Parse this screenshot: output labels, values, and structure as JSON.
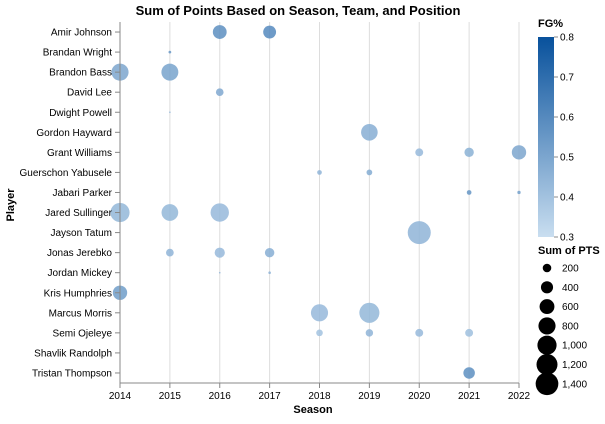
{
  "chart_data": {
    "type": "scatter",
    "title": "Sum of Points Based on Season, Team, and Position",
    "xlabel": "Season",
    "ylabel": "Player",
    "x_categories": [
      "2014",
      "2015",
      "2016",
      "2017",
      "2018",
      "2019",
      "2020",
      "2021",
      "2022"
    ],
    "y_categories": [
      "Amir Johnson",
      "Brandan Wright",
      "Brandon Bass",
      "David Lee",
      "Dwight Powell",
      "Gordon Hayward",
      "Grant Williams",
      "Guerschon Yabusele",
      "Jabari Parker",
      "Jared Sullinger",
      "Jayson Tatum",
      "Jonas Jerebko",
      "Jordan Mickey",
      "Kris Humphries",
      "Marcus Morris",
      "Semi Ojeleye",
      "Shavlik Randolph",
      "Tristan Thompson"
    ],
    "grid": true,
    "color_legend": {
      "title": "FG%",
      "domain": [
        0.3,
        0.8
      ],
      "ticks": [
        "0.8",
        "0.7",
        "0.6",
        "0.5",
        "0.4",
        "0.3"
      ],
      "tick_values": [
        0.8,
        0.7,
        0.6,
        0.5,
        0.4,
        0.3
      ],
      "color_low": "#c9def0",
      "color_high": "#08519c"
    },
    "size_legend": {
      "title": "Sum of PTS",
      "ticks": [
        "200",
        "400",
        "600",
        "800",
        "1,000",
        "1,200",
        "1,400"
      ],
      "tick_values": [
        200,
        400,
        600,
        800,
        1000,
        1200,
        1400
      ]
    },
    "points": [
      {
        "player": "Amir Johnson",
        "season": "2016",
        "pts": 520,
        "fg": 0.58
      },
      {
        "player": "Amir Johnson",
        "season": "2017",
        "pts": 450,
        "fg": 0.6
      },
      {
        "player": "Brandan Wright",
        "season": "2015",
        "pts": 20,
        "fg": 0.55
      },
      {
        "player": "Brandon Bass",
        "season": "2014",
        "pts": 800,
        "fg": 0.5
      },
      {
        "player": "Brandon Bass",
        "season": "2015",
        "pts": 780,
        "fg": 0.51
      },
      {
        "player": "David Lee",
        "season": "2016",
        "pts": 160,
        "fg": 0.49
      },
      {
        "player": "Dwight Powell",
        "season": "2015",
        "pts": 8,
        "fg": 0.42
      },
      {
        "player": "Gordon Hayward",
        "season": "2019",
        "pts": 750,
        "fg": 0.47
      },
      {
        "player": "Grant Williams",
        "season": "2020",
        "pts": 170,
        "fg": 0.43
      },
      {
        "player": "Grant Williams",
        "season": "2021",
        "pts": 240,
        "fg": 0.46
      },
      {
        "player": "Grant Williams",
        "season": "2022",
        "pts": 560,
        "fg": 0.5
      },
      {
        "player": "Guerschon Yabusele",
        "season": "2018",
        "pts": 60,
        "fg": 0.45
      },
      {
        "player": "Guerschon Yabusele",
        "season": "2019",
        "pts": 90,
        "fg": 0.48
      },
      {
        "player": "Jabari Parker",
        "season": "2021",
        "pts": 60,
        "fg": 0.56
      },
      {
        "player": "Jabari Parker",
        "season": "2022",
        "pts": 30,
        "fg": 0.52
      },
      {
        "player": "Jared Sullinger",
        "season": "2014",
        "pts": 1000,
        "fg": 0.44
      },
      {
        "player": "Jared Sullinger",
        "season": "2015",
        "pts": 760,
        "fg": 0.44
      },
      {
        "player": "Jared Sullinger",
        "season": "2016",
        "pts": 920,
        "fg": 0.43
      },
      {
        "player": "Jayson Tatum",
        "season": "2020",
        "pts": 1440,
        "fg": 0.45
      },
      {
        "player": "Jonas Jerebko",
        "season": "2015",
        "pts": 160,
        "fg": 0.45
      },
      {
        "player": "Jonas Jerebko",
        "season": "2016",
        "pts": 280,
        "fg": 0.43
      },
      {
        "player": "Jonas Jerebko",
        "season": "2017",
        "pts": 240,
        "fg": 0.47
      },
      {
        "player": "Jordan Mickey",
        "season": "2016",
        "pts": 6,
        "fg": 0.45
      },
      {
        "player": "Jordan Mickey",
        "season": "2017",
        "pts": 18,
        "fg": 0.45
      },
      {
        "player": "Kris Humphries",
        "season": "2014",
        "pts": 560,
        "fg": 0.53
      },
      {
        "player": "Marcus Morris",
        "season": "2018",
        "pts": 800,
        "fg": 0.43
      },
      {
        "player": "Marcus Morris",
        "season": "2019",
        "pts": 1100,
        "fg": 0.44
      },
      {
        "player": "Semi Ojeleye",
        "season": "2018",
        "pts": 120,
        "fg": 0.4
      },
      {
        "player": "Semi Ojeleye",
        "season": "2019",
        "pts": 150,
        "fg": 0.45
      },
      {
        "player": "Semi Ojeleye",
        "season": "2020",
        "pts": 170,
        "fg": 0.43
      },
      {
        "player": "Semi Ojeleye",
        "season": "2021",
        "pts": 170,
        "fg": 0.41
      },
      {
        "player": "Tristan Thompson",
        "season": "2021",
        "pts": 360,
        "fg": 0.58
      }
    ]
  }
}
